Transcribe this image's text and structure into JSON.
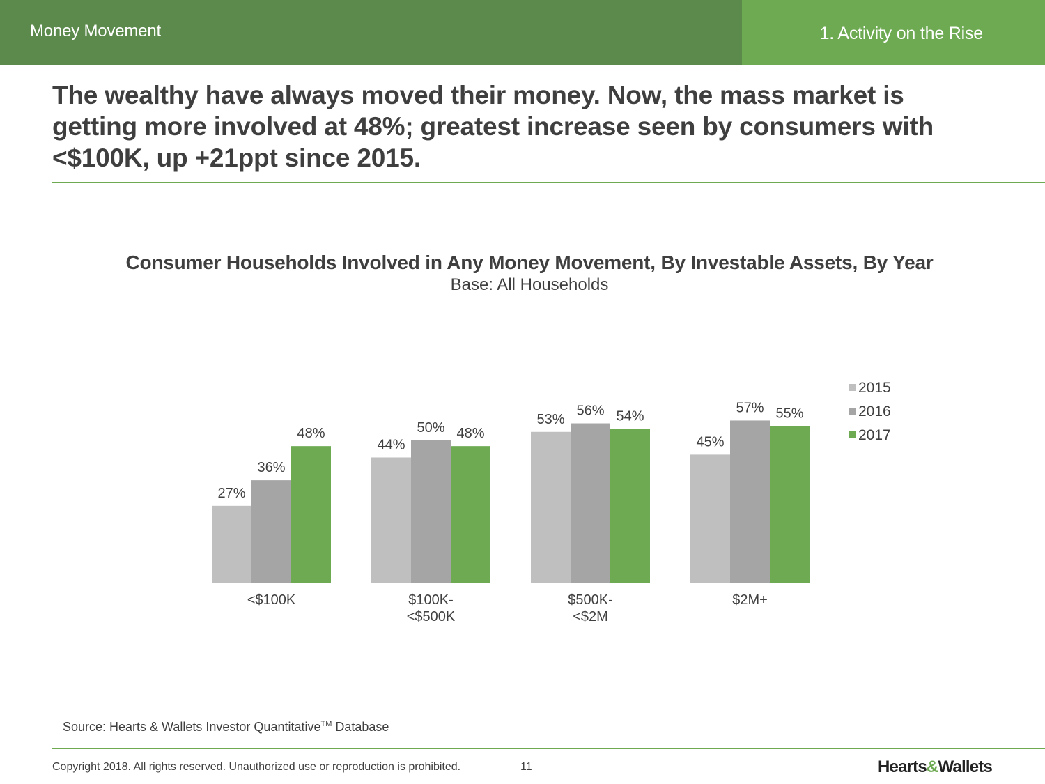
{
  "header": {
    "section": "Money Movement",
    "step": "1. Activity on the Rise"
  },
  "headline": "The wealthy have always moved their money. Now, the mass market is getting more involved at 48%; greatest increase seen by consumers with <$100K, up +21ppt since 2015.",
  "chart_data": {
    "type": "bar",
    "title": "Consumer Households Involved in Any Money Movement, By Investable Assets, By Year",
    "subtitle": "Base:  All Households",
    "categories": [
      [
        "<$100K"
      ],
      [
        "$100K-",
        "<$500K"
      ],
      [
        "$500K-",
        "<$2M"
      ],
      [
        "$2M+"
      ]
    ],
    "series": [
      {
        "name": "2015",
        "color": "#bfbfbf",
        "values": [
          27,
          44,
          53,
          45
        ],
        "labels": [
          "27%",
          "44%",
          "53%",
          "45%"
        ]
      },
      {
        "name": "2016",
        "color": "#a5a5a5",
        "values": [
          36,
          50,
          56,
          57
        ],
        "labels": [
          "36%",
          "50%",
          "56%",
          "57%"
        ]
      },
      {
        "name": "2017",
        "color": "#6daa52",
        "values": [
          48,
          48,
          54,
          55
        ],
        "labels": [
          "48%",
          "48%",
          "54%",
          "55%"
        ]
      }
    ],
    "ylim": [
      0,
      100
    ],
    "grid": false,
    "legend": "top-right"
  },
  "footer": {
    "source_text": "Source: Hearts & Wallets Investor Quantitative",
    "source_superscript": "TM",
    "source_suffix": " Database",
    "copyright": "Copyright 2018. All rights reserved. Unauthorized use or reproduction is prohibited.",
    "page": "11",
    "logo_part1": "Hearts",
    "logo_amp": "&",
    "logo_part2": "Wallets"
  }
}
